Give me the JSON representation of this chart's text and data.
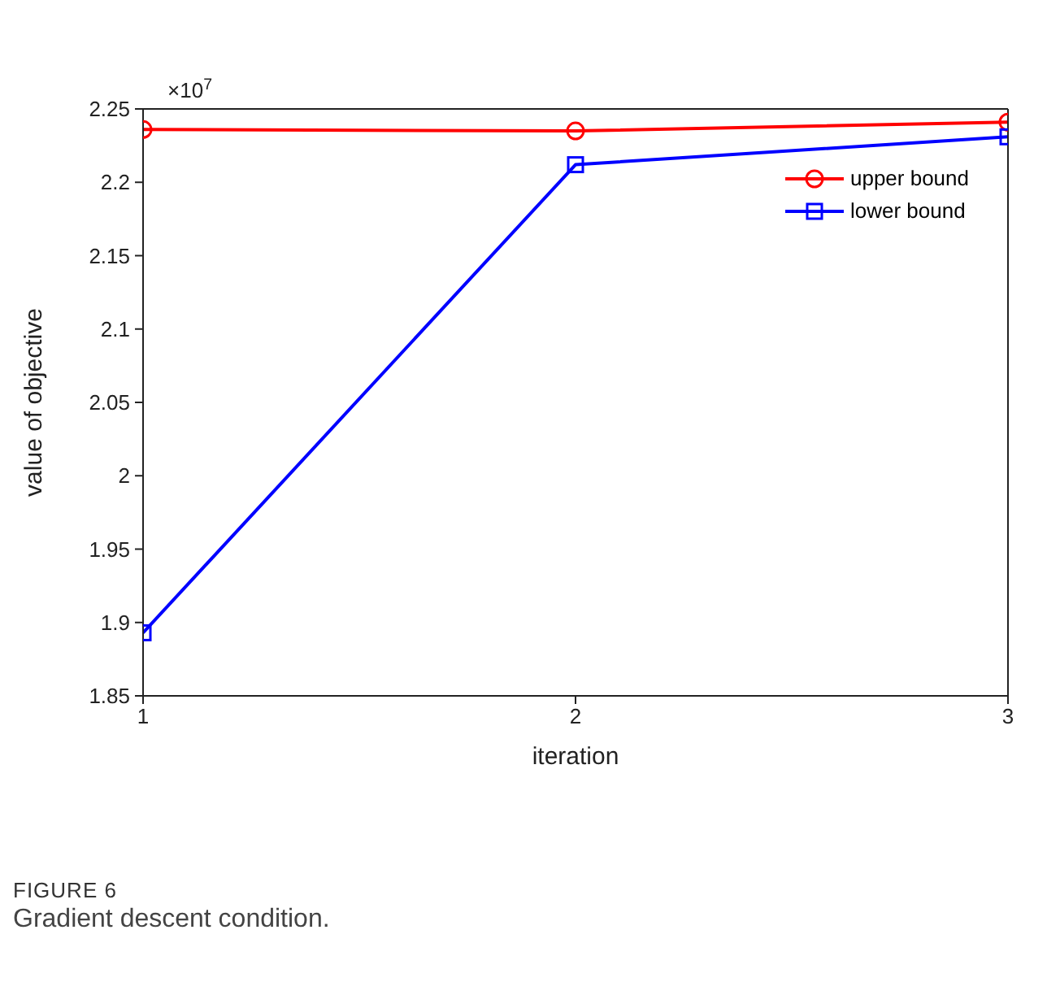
{
  "chart_data": {
    "type": "line",
    "xlabel": "iteration",
    "ylabel": "value of objective",
    "x": [
      1,
      2,
      3
    ],
    "series": [
      {
        "name": "upper bound",
        "color": "#ff0000",
        "marker": "circle",
        "values": [
          2.236,
          2.235,
          2.241
        ]
      },
      {
        "name": "lower bound",
        "color": "#0000ff",
        "marker": "square",
        "values": [
          1.893,
          2.212,
          2.231
        ]
      }
    ],
    "xlim": [
      1,
      3
    ],
    "xticks": [
      1,
      2,
      3
    ],
    "ylim": [
      1.85,
      2.25
    ],
    "yticks": [
      1.85,
      1.9,
      1.95,
      2,
      2.05,
      2.1,
      2.15,
      2.2,
      2.25
    ],
    "grid": false,
    "legend": "top right",
    "annotations": [
      "×10$^{7}$",
      "FIGURE 6",
      "Gradient descent condition."
    ]
  }
}
